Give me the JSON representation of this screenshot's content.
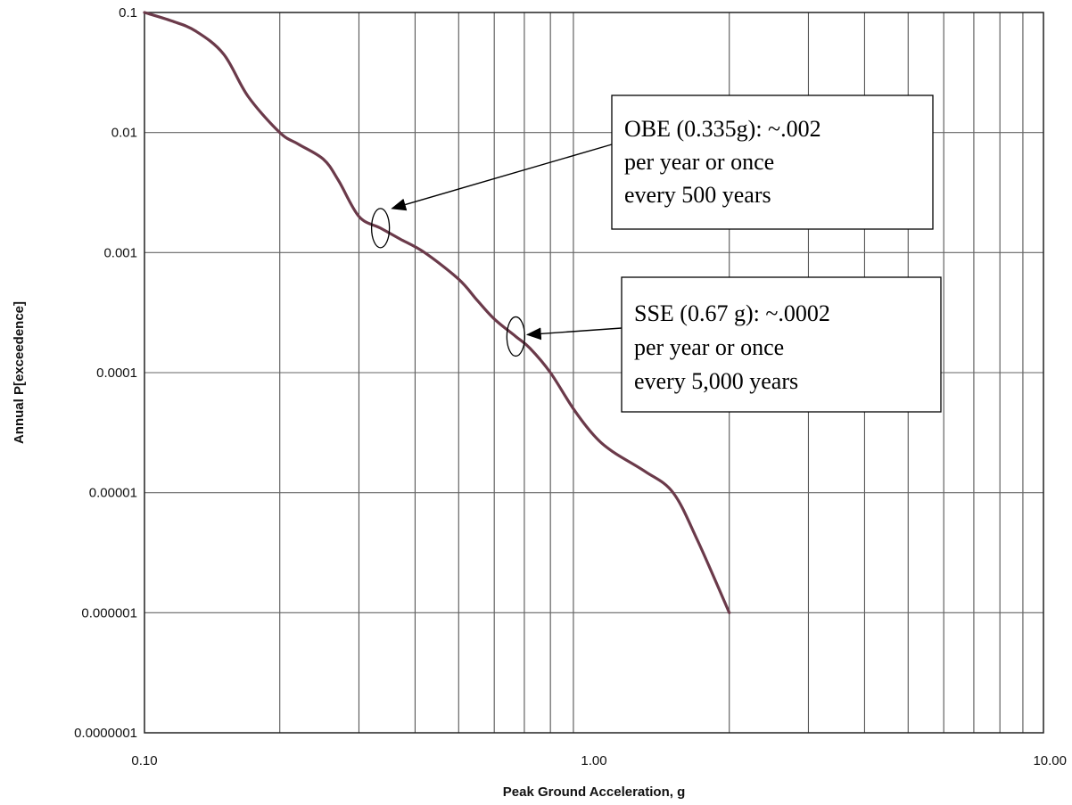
{
  "chart_data": {
    "type": "line",
    "xscale": "log",
    "yscale": "log",
    "xlim": [
      0.1,
      10
    ],
    "ylim": [
      1e-07,
      0.1
    ],
    "grid": true,
    "title": "",
    "xlabel": "Peak Ground Acceleration, g",
    "ylabel": "Annual P[exceedence]",
    "x_ticks": [
      0.1,
      1,
      10
    ],
    "x_tick_labels": [
      "0.10",
      "1.00",
      "10.00"
    ],
    "y_ticks": [
      0.1,
      0.01,
      0.001,
      0.0001,
      1e-05,
      1e-06,
      1e-07
    ],
    "y_tick_labels": [
      "0.1",
      "0.01",
      "0.001",
      "0.0001",
      "0.00001",
      "0.000001",
      "0.0000001"
    ],
    "series": [
      {
        "color": "#6b3a4a",
        "x": [
          0.1,
          0.115,
          0.13,
          0.15,
          0.17,
          0.2,
          0.22,
          0.25,
          0.27,
          0.3,
          0.335,
          0.37,
          0.42,
          0.5,
          0.55,
          0.6,
          0.67,
          0.72,
          0.8,
          0.9,
          1.0,
          1.1,
          1.3,
          1.5,
          1.7,
          2.0
        ],
        "y": [
          0.1,
          0.085,
          0.07,
          0.045,
          0.02,
          0.01,
          0.008,
          0.006,
          0.004,
          0.002,
          0.0016,
          0.0013,
          0.001,
          0.0006,
          0.0004,
          0.00028,
          0.0002,
          0.00016,
          0.0001,
          5e-05,
          3e-05,
          2.2e-05,
          1.5e-05,
          1e-05,
          4e-06,
          1e-06
        ]
      }
    ],
    "annotations": [
      {
        "lines": [
          "OBE (0.335g): ~.002",
          "per year or once",
          "every 500 years"
        ],
        "target": {
          "x": 0.335,
          "y": 0.0016
        }
      },
      {
        "lines": [
          "SSE (0.67 g): ~.0002",
          "per year or once",
          "every 5,000 years"
        ],
        "target": {
          "x": 0.67,
          "y": 0.0002
        }
      }
    ]
  }
}
